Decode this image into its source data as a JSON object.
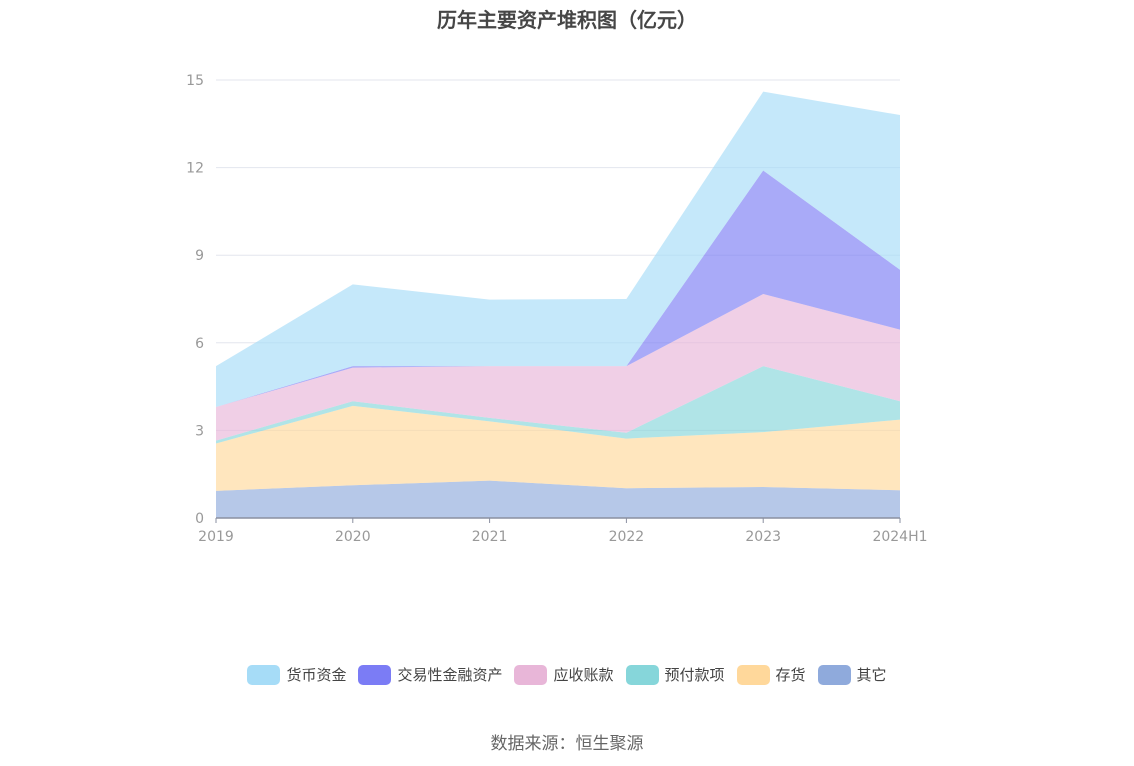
{
  "chart_data": {
    "type": "area",
    "stacked": true,
    "title": "历年主要资产堆积图（亿元）",
    "categories": [
      "2019",
      "2020",
      "2021",
      "2022",
      "2023",
      "2024H1"
    ],
    "y_ticks": [
      "0",
      "3",
      "6",
      "9",
      "12",
      "15"
    ],
    "ylim": [
      0,
      15
    ],
    "grid": true,
    "legend_position": "bottom",
    "series": [
      {
        "name": "其它",
        "color": "#8faadc",
        "values": [
          0.93,
          1.12,
          1.28,
          1.02,
          1.06,
          0.95
        ]
      },
      {
        "name": "存货",
        "color": "#ffd89b",
        "values": [
          1.62,
          2.72,
          2.03,
          1.7,
          1.88,
          2.42
        ]
      },
      {
        "name": "预付款项",
        "color": "#86d6da",
        "values": [
          0.1,
          0.16,
          0.12,
          0.2,
          2.26,
          0.63
        ]
      },
      {
        "name": "应收账款",
        "color": "#e8b6d8",
        "values": [
          1.15,
          1.15,
          1.77,
          2.28,
          2.47,
          2.45
        ]
      },
      {
        "name": "交易性金融资产",
        "color": "#7b7cf5",
        "values": [
          0.0,
          0.05,
          0.0,
          0.0,
          4.23,
          2.05
        ]
      },
      {
        "name": "货币资金",
        "color": "#a6dcf7",
        "values": [
          1.4,
          2.8,
          2.28,
          2.3,
          2.7,
          5.3
        ]
      }
    ],
    "legend_order": [
      "货币资金",
      "交易性金融资产",
      "应收账款",
      "预付款项",
      "存货",
      "其它"
    ]
  },
  "source": "数据来源：恒生聚源"
}
